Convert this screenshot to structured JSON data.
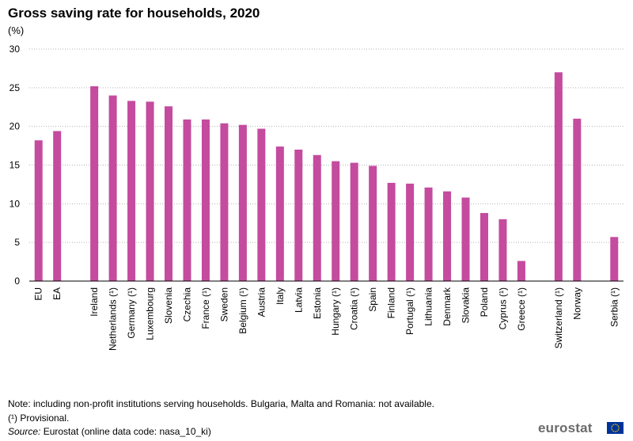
{
  "chart_data": {
    "type": "bar",
    "title": "Gross saving rate for households, 2020",
    "ylabel": "(%)",
    "ylim": [
      0,
      30
    ],
    "yticks": [
      0,
      5,
      10,
      15,
      20,
      25,
      30
    ],
    "grid": true,
    "bar_color": "#c44b9e",
    "categories": [
      "EU",
      "EA",
      "",
      "Ireland",
      "Netherlands (¹)",
      "Germany (¹)",
      "Luxembourg",
      "Slovenia",
      "Czechia",
      "France (¹)",
      "Sweden",
      "Belgium (¹)",
      "Austria",
      "Italy",
      "Latvia",
      "Estonia",
      "Hungary (¹)",
      "Croatia (¹)",
      "Spain",
      "Finland",
      "Portugal (¹)",
      "Lithuania",
      "Denmark",
      "Slovakia",
      "Poland",
      "Cyprus (¹)",
      "Greece (¹)",
      "",
      "Switzerland (¹)",
      "Norway",
      "",
      "Serbia (¹)"
    ],
    "values": [
      18.2,
      19.4,
      null,
      25.2,
      24.0,
      23.3,
      23.2,
      22.6,
      20.9,
      20.9,
      20.4,
      20.2,
      19.7,
      17.4,
      17.0,
      16.3,
      15.5,
      15.3,
      14.9,
      12.7,
      12.6,
      12.1,
      11.6,
      10.8,
      8.8,
      8.0,
      2.6,
      null,
      27.0,
      21.0,
      null,
      5.7
    ]
  },
  "notes": {
    "note": "Note: including non-profit institutions serving households. Bulgaria, Malta and Romania: not available.",
    "provisional": "(¹) Provisional.",
    "source_label": "Source:",
    "source_text": " Eurostat (online data code: nasa_10_ki)"
  },
  "branding": {
    "logo_text": "eurostat",
    "flag_color": "#003399",
    "star_color": "#ffcc00"
  }
}
